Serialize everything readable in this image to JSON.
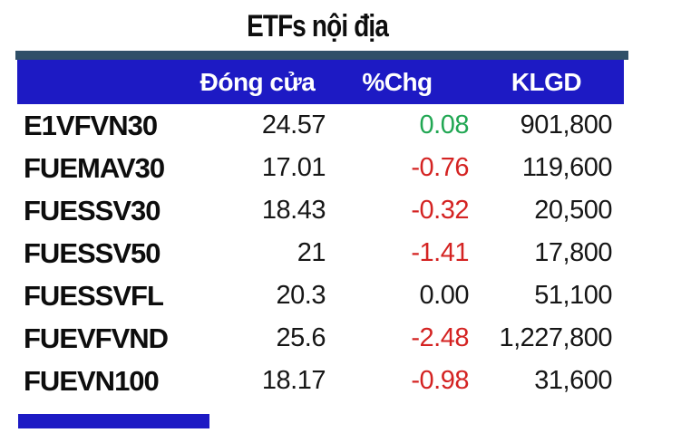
{
  "title": "ETFs nội địa",
  "table": {
    "headers": {
      "ticker": "",
      "close": "Đóng cửa",
      "chg": "%Chg",
      "klgd": "KLGD"
    },
    "rows": [
      {
        "ticker": "E1VFVN30",
        "close": "24.57",
        "chg": "0.08",
        "chg_dir": "up",
        "klgd": "901,800"
      },
      {
        "ticker": "FUEMAV30",
        "close": "17.01",
        "chg": "-0.76",
        "chg_dir": "down",
        "klgd": "119,600"
      },
      {
        "ticker": "FUESSV30",
        "close": "18.43",
        "chg": "-0.32",
        "chg_dir": "down",
        "klgd": "20,500"
      },
      {
        "ticker": "FUESSV50",
        "close": "21",
        "chg": "-1.41",
        "chg_dir": "down",
        "klgd": "17,800"
      },
      {
        "ticker": "FUESSVFL",
        "close": "20.3",
        "chg": "0.00",
        "chg_dir": "flat",
        "klgd": "51,100"
      },
      {
        "ticker": "FUEVFVND",
        "close": "25.6",
        "chg": "-2.48",
        "chg_dir": "down",
        "klgd": "1,227,800"
      },
      {
        "ticker": "FUEVN100",
        "close": "18.17",
        "chg": "-0.98",
        "chg_dir": "down",
        "klgd": "31,600"
      }
    ]
  },
  "colors": {
    "header_bg": "#1d1ac4",
    "top_strip": "#2f4f68",
    "positive": "#21a753",
    "negative": "#d42322",
    "text": "#161616"
  },
  "chart_data": {
    "type": "table",
    "title": "ETFs nội địa",
    "columns": [
      "",
      "Đóng cửa",
      "%Chg",
      "KLGD"
    ],
    "rows": [
      [
        "E1VFVN30",
        24.57,
        0.08,
        901800
      ],
      [
        "FUEMAV30",
        17.01,
        -0.76,
        119600
      ],
      [
        "FUESSV30",
        18.43,
        -0.32,
        20500
      ],
      [
        "FUESSV50",
        21,
        -1.41,
        17800
      ],
      [
        "FUESSVFL",
        20.3,
        0.0,
        51100
      ],
      [
        "FUEVFVND",
        25.6,
        -2.48,
        1227800
      ],
      [
        "FUEVN100",
        18.17,
        -0.98,
        31600
      ]
    ],
    "notes": "positive %Chg rendered green, negative red, zero black"
  }
}
